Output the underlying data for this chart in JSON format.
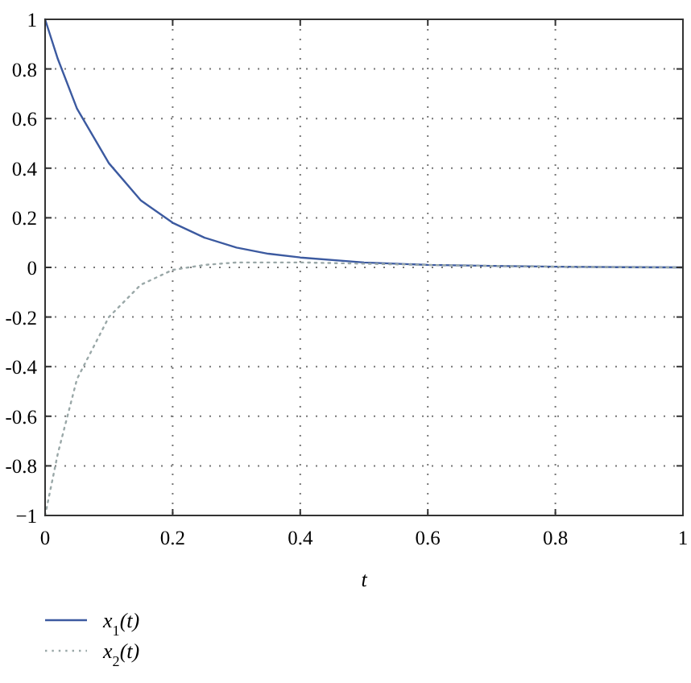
{
  "chart_data": {
    "type": "line",
    "xlabel": "t",
    "xlim": [
      0,
      1
    ],
    "xticks": [
      0,
      0.2,
      0.4,
      0.6,
      0.8,
      1
    ],
    "ylim": [
      -1,
      1
    ],
    "yticks": [
      {
        "value": -1,
        "label": "−1"
      },
      -0.8,
      -0.6,
      -0.4,
      -0.2,
      0,
      0.2,
      0.4,
      0.6,
      0.8,
      1
    ],
    "grid": true,
    "legend": "bottom",
    "marker": "none",
    "series": [
      {
        "name": "x$_{1}$(t)",
        "color": "#3c5aa0",
        "line_style": "solid",
        "x": [
          0,
          0.02,
          0.05,
          0.1,
          0.15,
          0.2,
          0.25,
          0.3,
          0.35,
          0.4,
          0.5,
          0.6,
          0.7,
          0.8,
          0.9,
          1
        ],
        "values": [
          1,
          0.84,
          0.64,
          0.42,
          0.27,
          0.18,
          0.12,
          0.08,
          0.055,
          0.04,
          0.02,
          0.01,
          0.006,
          0.003,
          0.001,
          0
        ]
      },
      {
        "name": "x$_{2}$(t)",
        "color": "#9aa8a8",
        "line_style": "dotted",
        "x": [
          0,
          0.02,
          0.05,
          0.1,
          0.15,
          0.2,
          0.25,
          0.3,
          0.35,
          0.4,
          0.5,
          0.6,
          0.7,
          0.8,
          0.9,
          1
        ],
        "values": [
          -1,
          -0.75,
          -0.45,
          -0.2,
          -0.07,
          -0.01,
          0.01,
          0.02,
          0.02,
          0.02,
          0.015,
          0.01,
          0.006,
          0.003,
          0.001,
          0
        ]
      }
    ]
  }
}
